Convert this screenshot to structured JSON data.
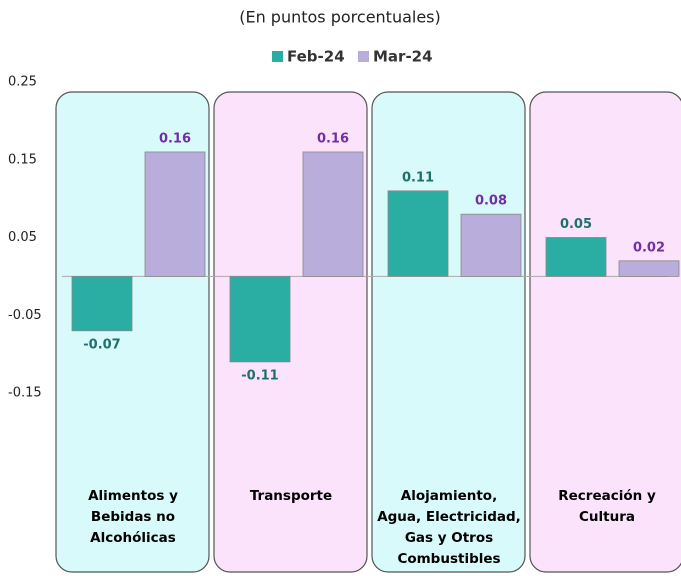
{
  "chart_data": {
    "type": "bar",
    "subtitle": "(En puntos porcentuales)",
    "categories": [
      "Alimentos y Bebidas no Alcohólicas",
      "Transporte",
      "Alojamiento, Agua, Electricidad, Gas y Otros Combustibles",
      "Recreación y Cultura"
    ],
    "series": [
      {
        "name": "Feb-24",
        "color": "#2aaea3",
        "label_color": "#1f6f6a",
        "values": [
          -0.07,
          -0.11,
          0.11,
          0.05
        ]
      },
      {
        "name": "Mar-24",
        "color": "#b9aedb",
        "label_color": "#7030a0",
        "values": [
          0.16,
          0.16,
          0.08,
          0.02
        ]
      }
    ],
    "ylim": [
      -0.15,
      0.25
    ],
    "yticks": [
      0.25,
      0.15,
      0.05,
      -0.05,
      -0.15
    ],
    "panel_colors": [
      "#d8fafa",
      "#fbe3fb",
      "#d8fafa",
      "#fbe3fb"
    ]
  }
}
